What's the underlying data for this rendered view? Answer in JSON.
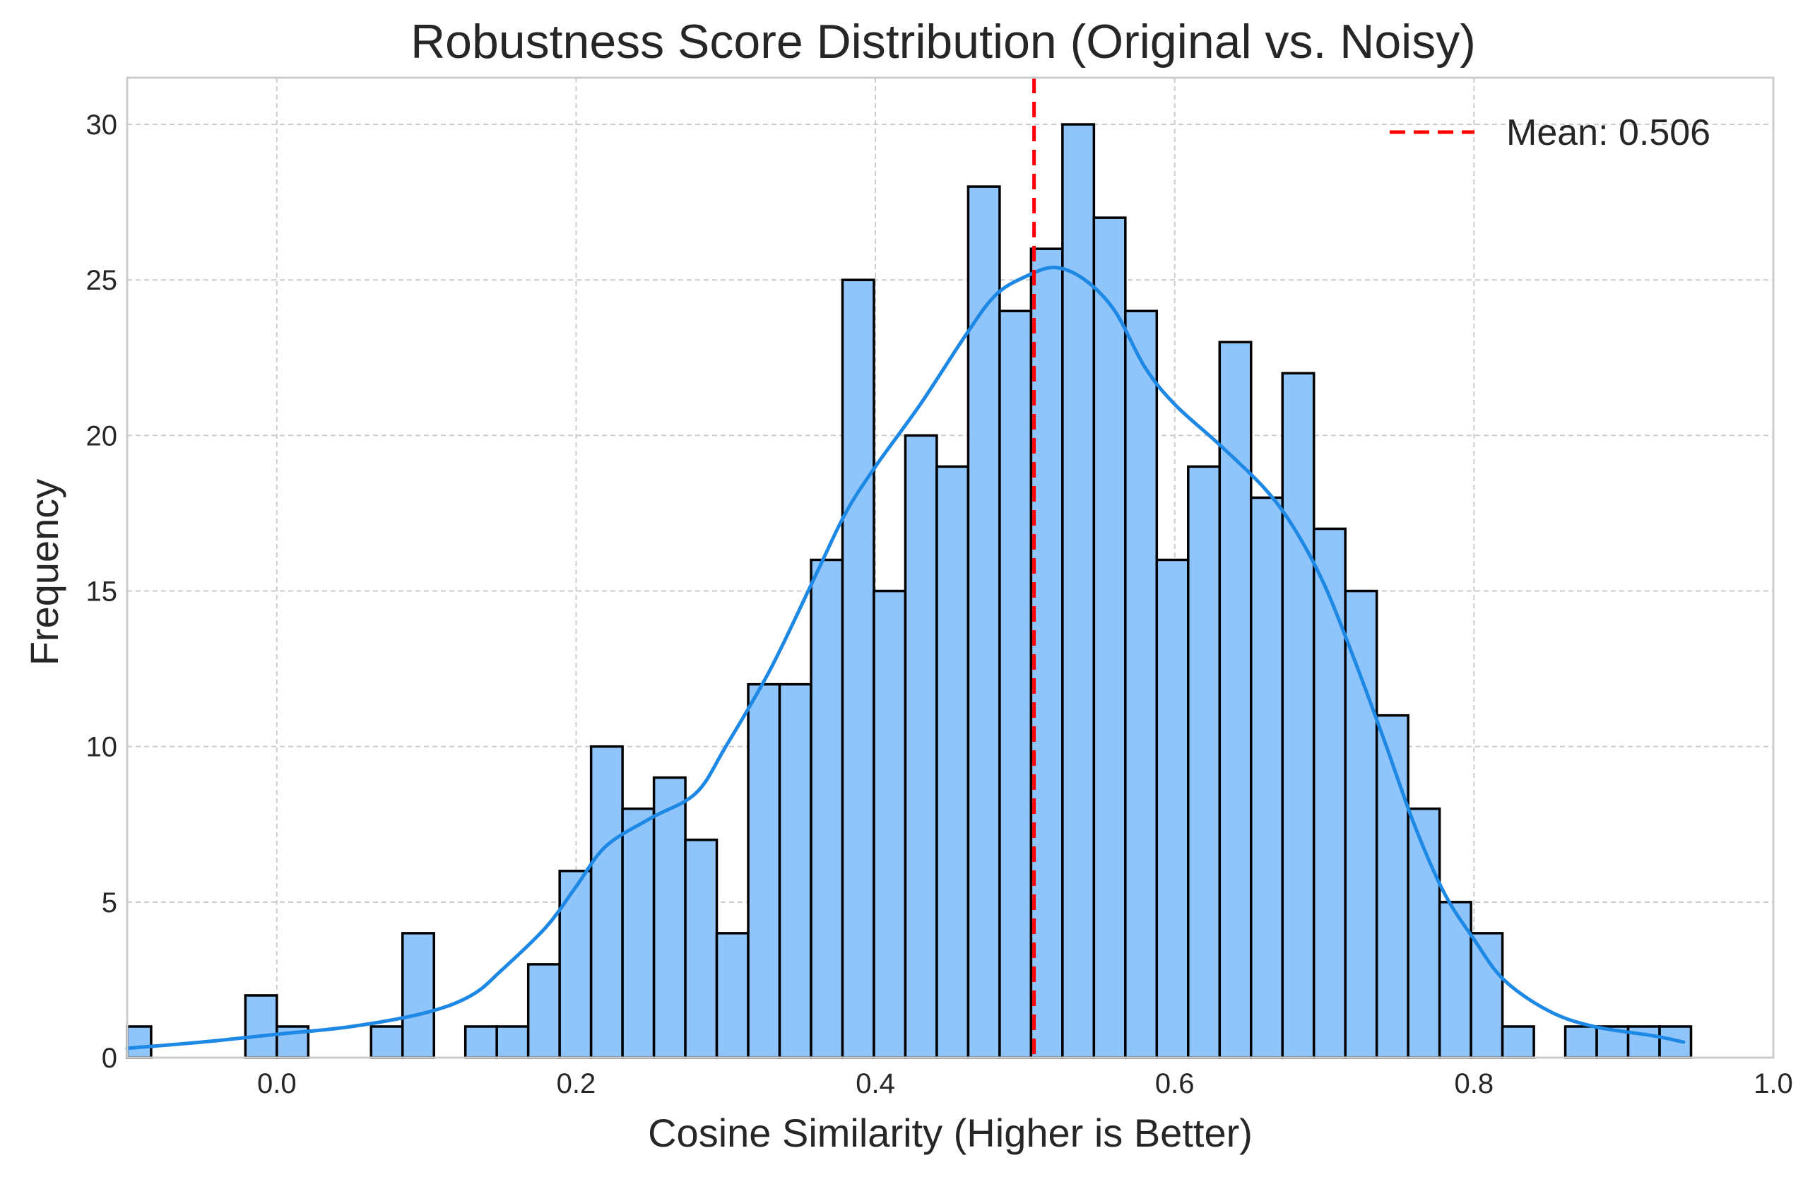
{
  "chart_data": {
    "type": "bar",
    "title": "Robustness Score Distribution (Original vs. Noisy)",
    "xlabel": "Cosine Similarity (Higher is Better)",
    "ylabel": "Frequency",
    "xlim": [
      -0.1,
      1.0
    ],
    "ylim": [
      0,
      31.5
    ],
    "x_ticks": [
      0.0,
      0.2,
      0.4,
      0.6,
      0.8,
      1.0
    ],
    "x_tick_labels": [
      "0.0",
      "0.2",
      "0.4",
      "0.6",
      "0.8",
      "1.0"
    ],
    "y_ticks": [
      0,
      5,
      10,
      15,
      20,
      25,
      30
    ],
    "y_tick_labels": [
      "0",
      "5",
      "10",
      "15",
      "20",
      "25",
      "30"
    ],
    "grid": true,
    "legend_position": "top-right",
    "bin_start": -0.105,
    "bin_width": 0.021,
    "values": [
      1,
      0,
      0,
      0,
      2,
      1,
      0,
      0,
      1,
      4,
      0,
      1,
      1,
      3,
      6,
      10,
      8,
      9,
      7,
      4,
      12,
      12,
      16,
      25,
      15,
      20,
      19,
      28,
      24,
      26,
      30,
      27,
      24,
      16,
      19,
      23,
      18,
      22,
      17,
      15,
      11,
      8,
      5,
      4,
      1,
      0,
      1,
      1,
      1,
      1
    ],
    "kde": {
      "x": [
        -0.1,
        -0.05,
        0.0,
        0.05,
        0.1,
        0.13,
        0.15,
        0.18,
        0.2,
        0.22,
        0.25,
        0.28,
        0.3,
        0.33,
        0.36,
        0.38,
        0.4,
        0.43,
        0.46,
        0.48,
        0.5,
        0.52,
        0.54,
        0.56,
        0.58,
        0.6,
        0.63,
        0.66,
        0.68,
        0.7,
        0.72,
        0.74,
        0.76,
        0.78,
        0.8,
        0.82,
        0.85,
        0.88,
        0.92,
        0.94
      ],
      "y": [
        0.3,
        0.5,
        0.75,
        1.0,
        1.45,
        2.0,
        2.8,
        4.2,
        5.5,
        6.8,
        7.7,
        8.5,
        10.0,
        12.5,
        15.5,
        17.5,
        19.0,
        21.0,
        23.2,
        24.5,
        25.1,
        25.4,
        25.0,
        24.0,
        22.2,
        21.0,
        19.7,
        18.3,
        17.0,
        15.2,
        12.8,
        10.2,
        7.5,
        5.3,
        3.8,
        2.5,
        1.5,
        1.0,
        0.7,
        0.5
      ],
      "color": "#1e88e5"
    },
    "mean": {
      "value": 0.506,
      "label": "Mean: 0.506",
      "color": "#ff0000"
    },
    "colors": {
      "bar_fill": "#90c5fb",
      "bar_edge": "#000000",
      "grid": "#cccccc",
      "spine": "#cccccc"
    }
  }
}
